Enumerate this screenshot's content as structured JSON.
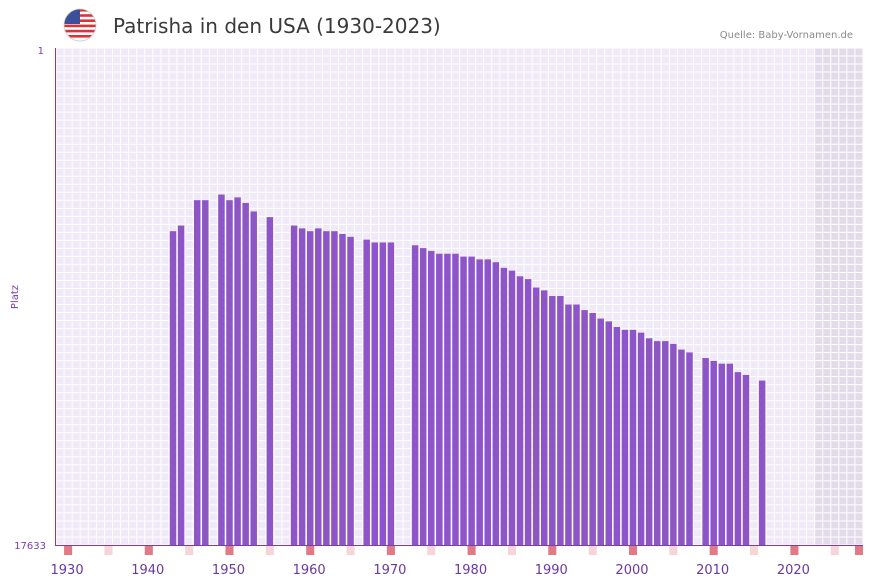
{
  "header": {
    "title": "Patrisha in den USA (1930-2023)",
    "source": "Quelle: Baby-Vornamen.de",
    "flag_icon": "usa-flag-icon"
  },
  "colors": {
    "bar": "#8e55c8",
    "plot_bg": "#efe9f8",
    "grid": "#ffffff",
    "shade": "#e2dcea",
    "axis": "#7a3ea8",
    "marker_strong": "#e07a86",
    "marker_light": "#f5d4da"
  },
  "chart_data": {
    "type": "bar",
    "ylabel": "Platz",
    "y_top_label": "1",
    "y_bottom_label": "17633",
    "ylim": [
      1,
      17633
    ],
    "xlim": [
      1929,
      2029
    ],
    "x_ticks": [
      "1930",
      "1940",
      "1950",
      "1960",
      "1970",
      "1980",
      "1990",
      "2000",
      "2010",
      "2020"
    ],
    "years": [
      1943,
      1944,
      1946,
      1947,
      1949,
      1950,
      1951,
      1952,
      1953,
      1955,
      1958,
      1959,
      1960,
      1961,
      1962,
      1963,
      1964,
      1965,
      1967,
      1968,
      1969,
      1970,
      1973,
      1974,
      1975,
      1976,
      1977,
      1978,
      1979,
      1980,
      1981,
      1982,
      1983,
      1984,
      1985,
      1986,
      1987,
      1988,
      1989,
      1990,
      1991,
      1992,
      1993,
      1994,
      1995,
      1996,
      1997,
      1998,
      1999,
      2000,
      2001,
      2002,
      2003,
      2004,
      2005,
      2006,
      2007,
      2009,
      2010,
      2011,
      2012,
      2013,
      2014,
      2016
    ],
    "values": [
      6500,
      6300,
      5400,
      5400,
      5200,
      5400,
      5300,
      5500,
      5800,
      6000,
      6300,
      6400,
      6500,
      6400,
      6500,
      6500,
      6600,
      6700,
      6800,
      6900,
      6900,
      6900,
      7000,
      7100,
      7200,
      7300,
      7300,
      7300,
      7400,
      7400,
      7500,
      7500,
      7600,
      7800,
      7900,
      8100,
      8200,
      8500,
      8600,
      8800,
      8800,
      9100,
      9100,
      9300,
      9400,
      9600,
      9700,
      9900,
      10000,
      10000,
      10100,
      10300,
      10400,
      10400,
      10500,
      10700,
      10800,
      11000,
      11100,
      11200,
      11200,
      11500,
      11600,
      11800
    ],
    "markers_strong": [
      1930,
      1940,
      1950,
      1960,
      1970,
      1980,
      1990,
      2000,
      2010,
      2020,
      2028
    ],
    "markers_light": [
      1935,
      1945,
      1955,
      1965,
      1975,
      1985,
      1995,
      2005,
      2015,
      2025
    ],
    "shaded_from_year": 2023
  }
}
